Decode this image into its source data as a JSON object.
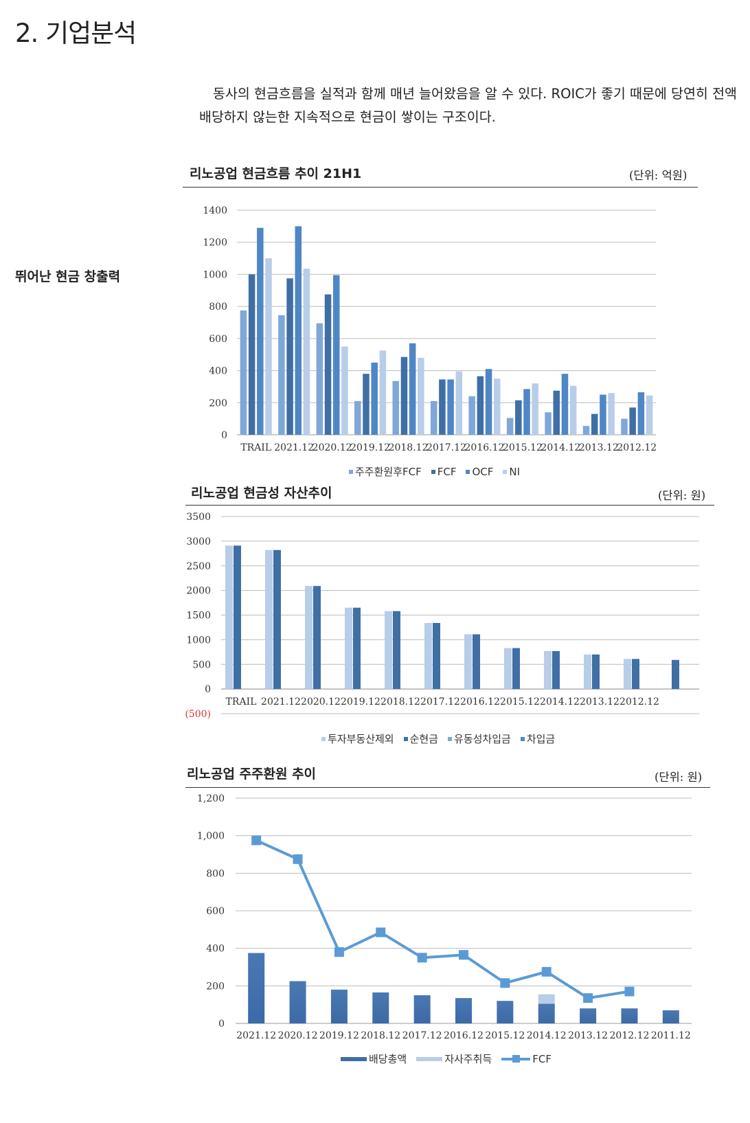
{
  "header": {
    "section_title": "2. 기업분석"
  },
  "intro_text": "동사의 현금흐름을 실적과 함께 매년 늘어왔음을 알 수 있다. ROIC가 좋기 때문에 당연히 전액 배당하지 않는한 지속적으로 현금이 쌓이는 구조이다.",
  "side_heading": "뛰어난 현금 창출력",
  "charts": {
    "cashflow": {
      "title": "리노공업 현금흐름 추이 21H1",
      "unit": "(단위: 억원)"
    },
    "cash_assets": {
      "title": "리노공업 현금성 자산추이",
      "unit": "(단위: 원)"
    },
    "shareholder": {
      "title": "리노공업 주주환원 추이",
      "unit": "(단위: 원)"
    }
  },
  "colors": {
    "light_blue": "#7fa7d9",
    "dark_blue": "#3f6fa5",
    "mid_blue": "#4f86c6",
    "pale_blue": "#b8cde8",
    "line_blue": "#5b9bd5",
    "negative_red": "#e03030"
  },
  "chart_data": [
    {
      "type": "bar",
      "title": "리노공업 현금흐름 추이 21H1",
      "ylim": [
        0,
        1400
      ],
      "yticks": [
        "0",
        "200",
        "400",
        "600",
        "800",
        "1000",
        "1200",
        "1400"
      ],
      "categories": [
        "TRAIL",
        "2021.12",
        "2020.12",
        "2019.12",
        "2018.12",
        "2017.12",
        "2016.12",
        "2015.12",
        "2014.12",
        "2013.12",
        "2012.12"
      ],
      "series": [
        {
          "name": "주주환원후FCF",
          "color": "#7fa7d9",
          "values": [
            775,
            745,
            695,
            210,
            335,
            210,
            240,
            105,
            140,
            55,
            100
          ]
        },
        {
          "name": "FCF",
          "color": "#3f6fa5",
          "values": [
            1000,
            975,
            875,
            380,
            485,
            345,
            365,
            215,
            275,
            130,
            170
          ]
        },
        {
          "name": "OCF",
          "color": "#4f86c6",
          "values": [
            1290,
            1300,
            995,
            450,
            570,
            345,
            410,
            285,
            380,
            250,
            265
          ]
        },
        {
          "name": "NI",
          "color": "#b8cde8",
          "values": [
            1100,
            1035,
            550,
            525,
            480,
            395,
            350,
            320,
            305,
            260,
            245
          ]
        }
      ],
      "grid": true,
      "legend": "bottom"
    },
    {
      "type": "bar",
      "title": "리노공업 현금성 자산추이",
      "ylim": [
        -500,
        3500
      ],
      "yticks": [
        "(500)",
        "0",
        "500",
        "1000",
        "1500",
        "2000",
        "2500",
        "3000",
        "3500"
      ],
      "categories": [
        "TRAIL",
        "2021.12",
        "2020.12",
        "2019.12",
        "2018.12",
        "2017.12",
        "2016.12",
        "2015.12",
        "2014.12",
        "2013.12",
        "2012.12",
        ""
      ],
      "series": [
        {
          "name": "투자부동산제외",
          "color": "#b8cde8",
          "values": [
            2910,
            2820,
            2090,
            1650,
            1580,
            1340,
            1110,
            830,
            770,
            700,
            610,
            null
          ]
        },
        {
          "name": "순현금",
          "color": "#3f6fa5",
          "values": [
            2910,
            2820,
            2090,
            1650,
            1580,
            1340,
            1110,
            830,
            770,
            700,
            610,
            590
          ]
        },
        {
          "name": "유동성차입금",
          "color": "#7fa7d9",
          "values": [
            0,
            0,
            0,
            0,
            0,
            0,
            0,
            0,
            0,
            0,
            0,
            0
          ]
        },
        {
          "name": "차입금",
          "color": "#4f86c6",
          "values": [
            0,
            0,
            0,
            0,
            0,
            0,
            0,
            0,
            0,
            0,
            0,
            0
          ]
        }
      ],
      "grid": true,
      "legend": "bottom"
    },
    {
      "type": "bar",
      "title": "리노공업 주주환원 추이",
      "ylim": [
        0,
        1200
      ],
      "yticks": [
        "0",
        "200",
        "400",
        "600",
        "800",
        "1,000",
        "1,200"
      ],
      "categories": [
        "2021.12",
        "2020.12",
        "2019.12",
        "2018.12",
        "2017.12",
        "2016.12",
        "2015.12",
        "2014.12",
        "2013.12",
        "2012.12",
        "2011.12"
      ],
      "series": [
        {
          "name": "배당총액",
          "color": "#3f6fa5",
          "kind": "bar",
          "values": [
            375,
            225,
            180,
            165,
            150,
            135,
            120,
            105,
            80,
            80,
            70
          ]
        },
        {
          "name": "자사주취득",
          "color": "#b8cde8",
          "kind": "bar",
          "values": [
            0,
            0,
            0,
            0,
            0,
            0,
            0,
            50,
            0,
            0,
            0
          ]
        },
        {
          "name": "FCF",
          "color": "#5b9bd5",
          "kind": "line",
          "values": [
            975,
            875,
            380,
            485,
            350,
            365,
            215,
            275,
            135,
            170,
            null
          ]
        }
      ],
      "grid": true,
      "legend": "bottom"
    }
  ]
}
